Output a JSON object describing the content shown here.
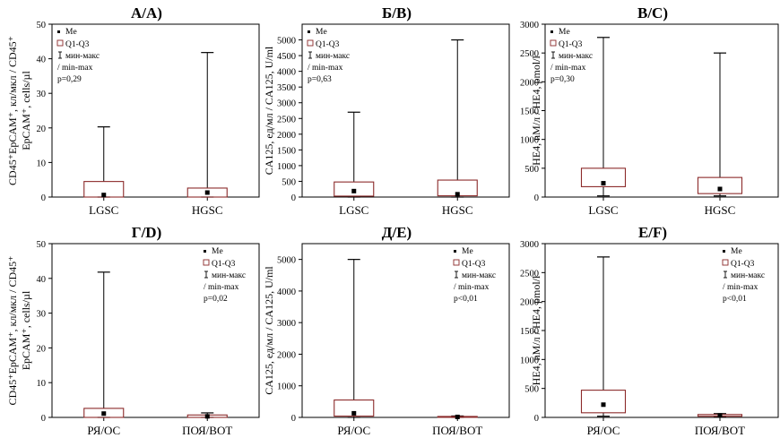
{
  "chart_data": [
    {
      "type": "box",
      "title": "A/A)",
      "ylabel": [
        "CD45⁺EpCAM⁺, кл/мкл / CD45⁺",
        "EpCAM⁺, cells/µl"
      ],
      "ylim": [
        0,
        50
      ],
      "yticks": [
        0,
        10,
        20,
        30,
        40,
        50
      ],
      "categories": [
        "LGSC",
        "HGSC"
      ],
      "boxes": [
        {
          "min": 0,
          "q1": 0,
          "median": 0.6,
          "q3": 4.5,
          "max": 20.3
        },
        {
          "min": 0,
          "q1": 0,
          "median": 1.3,
          "q3": 2.6,
          "max": 41.8
        }
      ],
      "legend": {
        "placement": "top-left",
        "items": [
          "Me",
          "Q1-Q3",
          "мин-макс",
          "/ min-max"
        ],
        "pvalue": "p=0,29"
      }
    },
    {
      "type": "box",
      "title": "Б/B)",
      "ylabel": [
        "CA125, ед/мл / CA125, U/ml"
      ],
      "ylim": [
        0,
        5500
      ],
      "yticks": [
        0,
        500,
        1000,
        1500,
        2000,
        2500,
        3000,
        3500,
        4000,
        4500,
        5000
      ],
      "categories": [
        "LGSC",
        "HGSC"
      ],
      "boxes": [
        {
          "min": 0,
          "q1": 30,
          "median": 190,
          "q3": 480,
          "max": 2700
        },
        {
          "min": 0,
          "q1": 40,
          "median": 90,
          "q3": 540,
          "max": 5000
        }
      ],
      "legend": {
        "placement": "top-left",
        "items": [
          "Me",
          "Q1-Q3",
          "мин-макс",
          "/ min-max"
        ],
        "pvalue": "p=0,63"
      }
    },
    {
      "type": "box",
      "title": "B/C)",
      "ylabel": [
        "HE4, nM/л / HE4, pmol/l"
      ],
      "ylim": [
        0,
        3000
      ],
      "yticks": [
        0,
        500,
        1000,
        1500,
        2000,
        2500,
        3000
      ],
      "categories": [
        "LGSC",
        "HGSC"
      ],
      "boxes": [
        {
          "min": 20,
          "q1": 180,
          "median": 240,
          "q3": 500,
          "max": 2770
        },
        {
          "min": 20,
          "q1": 60,
          "median": 140,
          "q3": 340,
          "max": 2500
        }
      ],
      "legend": {
        "placement": "top-left",
        "items": [
          "Me",
          "Q1-Q3",
          "мин-макс",
          "/ min-max"
        ],
        "pvalue": "p=0,30"
      }
    },
    {
      "type": "box",
      "title": "Г/D)",
      "ylabel": [
        "CD45⁺EpCAM⁺, кл/мкл / CD45⁺",
        "EpCAM⁺, cells/µl"
      ],
      "ylim": [
        0,
        50
      ],
      "yticks": [
        0,
        10,
        20,
        30,
        40,
        50
      ],
      "categories": [
        "РЯ/OC",
        "ПОЯ/BOT"
      ],
      "boxes": [
        {
          "min": 0,
          "q1": 0,
          "median": 1.1,
          "q3": 2.6,
          "max": 41.8
        },
        {
          "min": 0,
          "q1": 0,
          "median": 0.3,
          "q3": 0.7,
          "max": 1.3
        }
      ],
      "legend": {
        "placement": "top-right",
        "items": [
          "Me",
          "Q1-Q3",
          "мин-макс",
          "/ min-max"
        ],
        "pvalue": "p=0,02"
      }
    },
    {
      "type": "box",
      "title": "Д/E)",
      "ylabel": [
        "CA125, ед/мл / CA125, U/ml"
      ],
      "ylim": [
        0,
        5500
      ],
      "yticks": [
        0,
        1000,
        2000,
        3000,
        4000,
        5000
      ],
      "categories": [
        "РЯ/OC",
        "ПОЯ/BOT"
      ],
      "boxes": [
        {
          "min": 0,
          "q1": 40,
          "median": 130,
          "q3": 550,
          "max": 5000
        },
        {
          "min": 0,
          "q1": 5,
          "median": 15,
          "q3": 30,
          "max": 45
        }
      ],
      "legend": {
        "placement": "top-right",
        "items": [
          "Me",
          "Q1-Q3",
          "мин-макс",
          "/ min-max"
        ],
        "pvalue": "p<0,01"
      }
    },
    {
      "type": "box",
      "title": "E/F)",
      "ylabel": [
        "HE4, nM/л / HE4, pmol/l"
      ],
      "ylim": [
        0,
        3000
      ],
      "yticks": [
        0,
        500,
        1000,
        1500,
        2000,
        2500,
        3000
      ],
      "categories": [
        "РЯ/OC",
        "ПОЯ/BOT"
      ],
      "boxes": [
        {
          "min": 20,
          "q1": 80,
          "median": 220,
          "q3": 470,
          "max": 2770
        },
        {
          "min": 15,
          "q1": 20,
          "median": 35,
          "q3": 50,
          "max": 65
        }
      ],
      "legend": {
        "placement": "top-right",
        "items": [
          "Me",
          "Q1-Q3",
          "мин-макс",
          "/ min-max"
        ],
        "pvalue": "p<0,01"
      }
    }
  ]
}
